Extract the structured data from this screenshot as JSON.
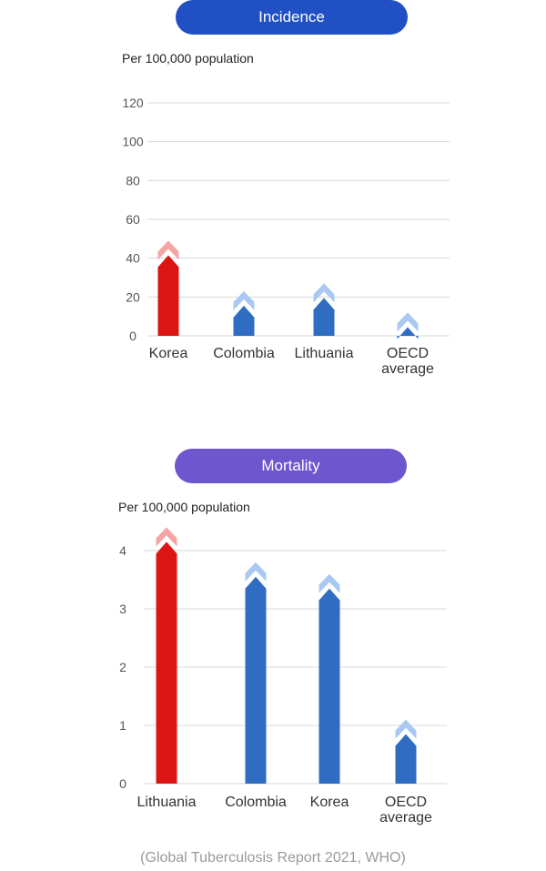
{
  "colors": {
    "incidence_pill": "#2150c4",
    "mortality_pill": "#6e56cf",
    "bar_red": "#dc1414",
    "bar_red_tip": "#f5a3a3",
    "bar_blue": "#2f6dc2",
    "bar_blue_tip": "#a9c9f2",
    "grid": "#d9d9d9"
  },
  "source": "(Global Tuberculosis Report 2021, WHO)",
  "chart_data": [
    {
      "type": "bar",
      "title": "Incidence",
      "ylabel": "Per 100,000 population",
      "categories": [
        "Korea",
        "Colombia",
        "Lithuania",
        "OECD average"
      ],
      "values": [
        49,
        23,
        27,
        12
      ],
      "highlight": [
        true,
        false,
        false,
        false
      ],
      "ylim": [
        0,
        120
      ],
      "yticks": [
        "0",
        "20",
        "40",
        "60",
        "80",
        "100",
        "120"
      ],
      "grid": true
    },
    {
      "type": "bar",
      "title": "Mortality",
      "ylabel": "Per 100,000 population",
      "categories": [
        "Lithuania",
        "Colombia",
        "Korea",
        "OECD average"
      ],
      "values": [
        4.4,
        3.8,
        3.6,
        1.1
      ],
      "highlight": [
        true,
        false,
        false,
        false
      ],
      "ylim": [
        0,
        4
      ],
      "yticks": [
        "0",
        "1",
        "2",
        "3",
        "4"
      ],
      "grid": true
    }
  ]
}
